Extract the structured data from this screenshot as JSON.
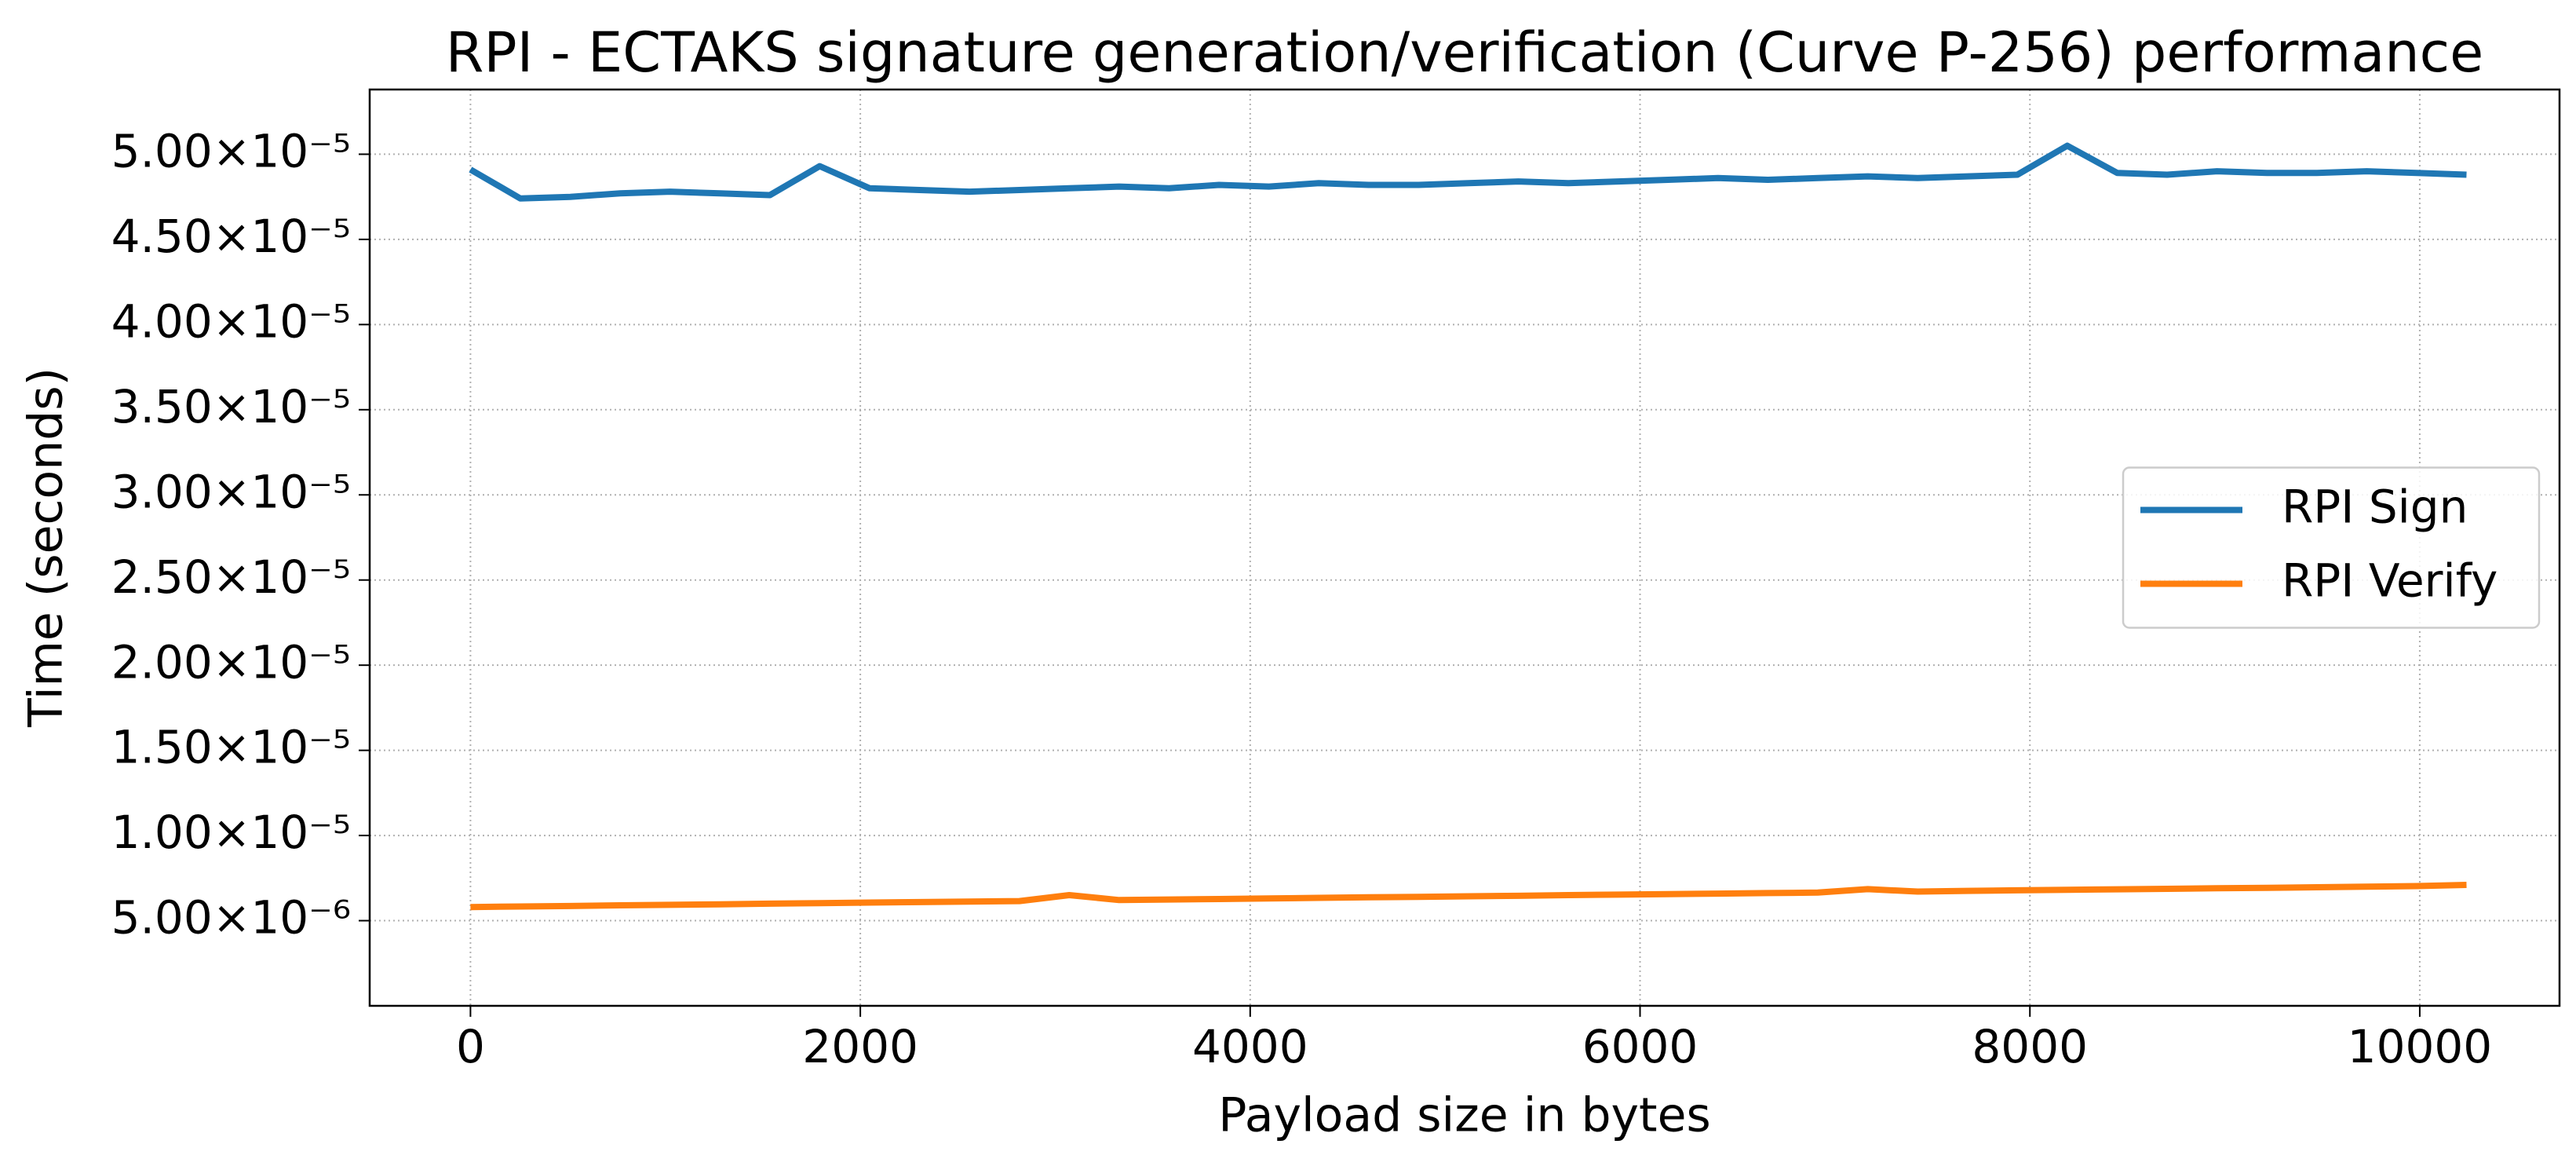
{
  "chart_data": {
    "type": "line",
    "title": "RPI - ECTAKS signature generation/verification (Curve P-256) performance",
    "x_label": "Payload size in bytes",
    "y_label": "Time (seconds)",
    "x": [
      0,
      256,
      512,
      768,
      1024,
      1280,
      1536,
      1792,
      2048,
      2304,
      2560,
      2816,
      3072,
      3328,
      3584,
      3840,
      4096,
      4352,
      4608,
      4864,
      5120,
      5376,
      5632,
      5888,
      6144,
      6400,
      6656,
      6912,
      7168,
      7424,
      7680,
      7936,
      8192,
      8448,
      8704,
      8960,
      9216,
      9472,
      9728,
      9984,
      10240
    ],
    "series": [
      {
        "name": "RPI Sign",
        "color": "#1f77b4",
        "values": [
          4.91e-05,
          4.74e-05,
          4.75e-05,
          4.77e-05,
          4.78e-05,
          4.77e-05,
          4.76e-05,
          4.93e-05,
          4.8e-05,
          4.79e-05,
          4.78e-05,
          4.79e-05,
          4.8e-05,
          4.81e-05,
          4.8e-05,
          4.82e-05,
          4.81e-05,
          4.83e-05,
          4.82e-05,
          4.82e-05,
          4.83e-05,
          4.84e-05,
          4.83e-05,
          4.84e-05,
          4.85e-05,
          4.86e-05,
          4.85e-05,
          4.86e-05,
          4.87e-05,
          4.86e-05,
          4.87e-05,
          4.88e-05,
          5.05e-05,
          4.89e-05,
          4.88e-05,
          4.9e-05,
          4.89e-05,
          4.89e-05,
          4.9e-05,
          4.89e-05,
          4.88e-05
        ]
      },
      {
        "name": "RPI Verify",
        "color": "#ff7f0e",
        "values": [
          5.8e-06,
          5.83e-06,
          5.86e-06,
          5.9e-06,
          5.93e-06,
          5.96e-06,
          6e-06,
          6.03e-06,
          6.06e-06,
          6.09e-06,
          6.12e-06,
          6.15e-06,
          6.5e-06,
          6.21e-06,
          6.24e-06,
          6.27e-06,
          6.3e-06,
          6.34e-06,
          6.37e-06,
          6.4e-06,
          6.43e-06,
          6.46e-06,
          6.5e-06,
          6.53e-06,
          6.56e-06,
          6.59e-06,
          6.62e-06,
          6.65e-06,
          6.85e-06,
          6.71e-06,
          6.75e-06,
          6.78e-06,
          6.81e-06,
          6.84e-06,
          6.87e-06,
          6.9e-06,
          6.93e-06,
          6.96e-06,
          7e-06,
          7.03e-06,
          7.1e-06
        ]
      }
    ],
    "xlim": [
      -517,
      10717
    ],
    "xticks": [
      0,
      2000,
      4000,
      6000,
      8000,
      10000
    ],
    "ylim": [
      0,
      5.38e-05
    ],
    "yticks": [
      {
        "value": 5e-06,
        "label": "5.00×10⁻⁶"
      },
      {
        "value": 1e-05,
        "label": "1.00×10⁻⁵"
      },
      {
        "value": 1.5e-05,
        "label": "1.50×10⁻⁵"
      },
      {
        "value": 2e-05,
        "label": "2.00×10⁻⁵"
      },
      {
        "value": 2.5e-05,
        "label": "2.50×10⁻⁵"
      },
      {
        "value": 3e-05,
        "label": "3.00×10⁻⁵"
      },
      {
        "value": 3.5e-05,
        "label": "3.50×10⁻⁵"
      },
      {
        "value": 4e-05,
        "label": "4.00×10⁻⁵"
      },
      {
        "value": 4.5e-05,
        "label": "4.50×10⁻⁵"
      },
      {
        "value": 5e-05,
        "label": "5.00×10⁻⁵"
      }
    ],
    "grid": true,
    "legend": "right"
  }
}
